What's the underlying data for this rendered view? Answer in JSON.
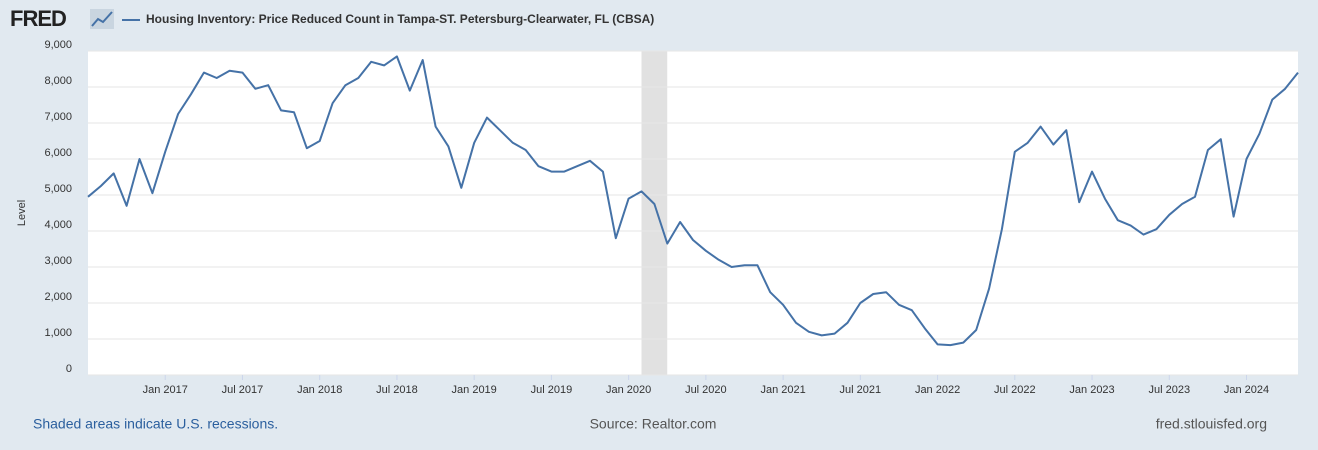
{
  "header": {
    "logo": "FRED"
  },
  "chart_data": {
    "type": "line",
    "series": [
      {
        "name": "Housing Inventory: Price Reduced Count in Tampa-ST. Petersburg-Clearwater, FL (CBSA)",
        "color": "#4572a7",
        "values": [
          4950,
          5250,
          5600,
          4700,
          6000,
          5050,
          6200,
          7250,
          7800,
          8400,
          8250,
          8450,
          8400,
          7950,
          8050,
          7350,
          7300,
          6300,
          6500,
          7550,
          8050,
          8250,
          8700,
          8600,
          8850,
          7900,
          8750,
          6900,
          6350,
          5200,
          6450,
          7150,
          6800,
          6450,
          6250,
          5800,
          5650,
          5650,
          5800,
          5950,
          5650,
          3800,
          4900,
          5100,
          4750,
          3650,
          4250,
          3750,
          3450,
          3200,
          3000,
          3050,
          3050,
          2300,
          1950,
          1450,
          1200,
          1100,
          1150,
          1450,
          2000,
          2250,
          2300,
          1950,
          1800,
          1300,
          850,
          830,
          900,
          1250,
          2400,
          4050,
          6200,
          6450,
          6900,
          6400,
          6800,
          4800,
          5650,
          4900,
          4300,
          4150,
          3900,
          4050,
          4450,
          4750,
          4950,
          6250,
          6550,
          4400,
          6000,
          6700,
          7650,
          7950,
          8400
        ]
      }
    ],
    "x": [
      "2016-07",
      "2016-08",
      "2016-09",
      "2016-10",
      "2016-11",
      "2016-12",
      "2017-01",
      "2017-02",
      "2017-03",
      "2017-04",
      "2017-05",
      "2017-06",
      "2017-07",
      "2017-08",
      "2017-09",
      "2017-10",
      "2017-11",
      "2017-12",
      "2018-01",
      "2018-02",
      "2018-03",
      "2018-04",
      "2018-05",
      "2018-06",
      "2018-07",
      "2018-08",
      "2018-09",
      "2018-10",
      "2018-11",
      "2018-12",
      "2019-01",
      "2019-02",
      "2019-03",
      "2019-04",
      "2019-05",
      "2019-06",
      "2019-07",
      "2019-08",
      "2019-09",
      "2019-10",
      "2019-11",
      "2019-12",
      "2020-01",
      "2020-02",
      "2020-03",
      "2020-04",
      "2020-05",
      "2020-06",
      "2020-07",
      "2020-08",
      "2020-09",
      "2020-10",
      "2020-11",
      "2020-12",
      "2021-01",
      "2021-02",
      "2021-03",
      "2021-04",
      "2021-05",
      "2021-06",
      "2021-07",
      "2021-08",
      "2021-09",
      "2021-10",
      "2021-11",
      "2021-12",
      "2022-01",
      "2022-02",
      "2022-03",
      "2022-04",
      "2022-05",
      "2022-06",
      "2022-07",
      "2022-08",
      "2022-09",
      "2022-10",
      "2022-11",
      "2022-12",
      "2023-01",
      "2023-02",
      "2023-03",
      "2023-04",
      "2023-05",
      "2023-06",
      "2023-07",
      "2023-08",
      "2023-09",
      "2023-10",
      "2023-11",
      "2023-12",
      "2024-01",
      "2024-02",
      "2024-03",
      "2024-04",
      "2024-05"
    ],
    "xlim": [
      "2016-07",
      "2024-05"
    ],
    "xticks": [
      {
        "value": "2017-01",
        "label": "Jan 2017"
      },
      {
        "value": "2017-07",
        "label": "Jul 2017"
      },
      {
        "value": "2018-01",
        "label": "Jan 2018"
      },
      {
        "value": "2018-07",
        "label": "Jul 2018"
      },
      {
        "value": "2019-01",
        "label": "Jan 2019"
      },
      {
        "value": "2019-07",
        "label": "Jul 2019"
      },
      {
        "value": "2020-01",
        "label": "Jan 2020"
      },
      {
        "value": "2020-07",
        "label": "Jul 2020"
      },
      {
        "value": "2021-01",
        "label": "Jan 2021"
      },
      {
        "value": "2021-07",
        "label": "Jul 2021"
      },
      {
        "value": "2022-01",
        "label": "Jan 2022"
      },
      {
        "value": "2022-07",
        "label": "Jul 2022"
      },
      {
        "value": "2023-01",
        "label": "Jan 2023"
      },
      {
        "value": "2023-07",
        "label": "Jul 2023"
      },
      {
        "value": "2024-01",
        "label": "Jan 2024"
      }
    ],
    "ylim": [
      0,
      9000
    ],
    "yticks": [
      0,
      {
        "value": 1000,
        "label": "1,000"
      },
      {
        "value": 2000,
        "label": "2,000"
      },
      {
        "value": 3000,
        "label": "3,000"
      },
      {
        "value": 4000,
        "label": "4,000"
      },
      {
        "value": 5000,
        "label": "5,000"
      },
      {
        "value": 6000,
        "label": "6,000"
      },
      {
        "value": 7000,
        "label": "7,000"
      },
      {
        "value": 8000,
        "label": "8,000"
      },
      {
        "value": 9000,
        "label": "9,000"
      }
    ],
    "ylabel": "Level",
    "grid": true,
    "recessions": [
      {
        "start": "2020-02",
        "end": "2020-04"
      }
    ]
  },
  "footer": {
    "note": "Shaded areas indicate U.S. recessions.",
    "source": "Source: Realtor.com",
    "site": "fred.stlouisfed.org"
  }
}
